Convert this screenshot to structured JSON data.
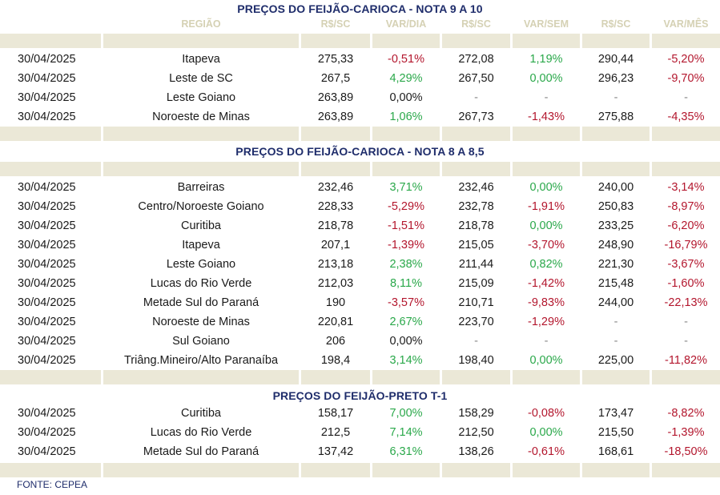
{
  "source": "FONTE: CEPEA",
  "headers": [
    "",
    "REGIÃO",
    "R$/SC",
    "VAR/DIA",
    "R$/SC",
    "VAR/SEM",
    "R$/SC",
    "VAR/MÊS"
  ],
  "colors": {
    "title": "#1f2d6b",
    "positive": "#2aa84a",
    "negative": "#b3162d",
    "band": "#ebe8d7"
  },
  "sections": [
    {
      "title": "PREÇOS DO FEIJÃO-CARIOCA - NOTA 9 A 10",
      "rows": [
        [
          "30/04/2025",
          "Itapeva",
          "275,33",
          "-0,51%",
          "272,08",
          "1,19%",
          "290,44",
          "-5,20%"
        ],
        [
          "30/04/2025",
          "Leste de SC",
          "267,5",
          "4,29%",
          "267,50",
          "0,00%",
          "296,23",
          "-9,70%"
        ],
        [
          "30/04/2025",
          "Leste Goiano",
          "263,89",
          "0,00%",
          "-",
          "-",
          "-",
          "-"
        ],
        [
          "30/04/2025",
          "Noroeste de Minas",
          "263,89",
          "1,06%",
          "267,73",
          "-1,43%",
          "275,88",
          "-4,35%"
        ]
      ]
    },
    {
      "title": "PREÇOS DO FEIJÃO-CARIOCA - NOTA 8 A 8,5",
      "rows": [
        [
          "30/04/2025",
          "Barreiras",
          "232,46",
          "3,71%",
          "232,46",
          "0,00%",
          "240,00",
          "-3,14%"
        ],
        [
          "30/04/2025",
          "Centro/Noroeste Goiano",
          "228,33",
          "-5,29%",
          "232,78",
          "-1,91%",
          "250,83",
          "-8,97%"
        ],
        [
          "30/04/2025",
          "Curitiba",
          "218,78",
          "-1,51%",
          "218,78",
          "0,00%",
          "233,25",
          "-6,20%"
        ],
        [
          "30/04/2025",
          "Itapeva",
          "207,1",
          "-1,39%",
          "215,05",
          "-3,70%",
          "248,90",
          "-16,79%"
        ],
        [
          "30/04/2025",
          "Leste Goiano",
          "213,18",
          "2,38%",
          "211,44",
          "0,82%",
          "221,30",
          "-3,67%"
        ],
        [
          "30/04/2025",
          "Lucas do Rio Verde",
          "212,03",
          "8,11%",
          "215,09",
          "-1,42%",
          "215,48",
          "-1,60%"
        ],
        [
          "30/04/2025",
          "Metade Sul do Paraná",
          "190",
          "-3,57%",
          "210,71",
          "-9,83%",
          "244,00",
          "-22,13%"
        ],
        [
          "30/04/2025",
          "Noroeste de Minas",
          "220,81",
          "2,67%",
          "223,70",
          "-1,29%",
          "-",
          "-"
        ],
        [
          "30/04/2025",
          "Sul Goiano",
          "206",
          "0,00%",
          "-",
          "-",
          "-",
          "-"
        ],
        [
          "30/04/2025",
          "Triâng.Mineiro/Alto Paranaíba",
          "198,4",
          "3,14%",
          "198,40",
          "0,00%",
          "225,00",
          "-11,82%"
        ]
      ]
    },
    {
      "title": "PREÇOS DO  FEIJÃO-PRETO  T-1",
      "rows": [
        [
          "30/04/2025",
          "Curitiba",
          "158,17",
          "7,00%",
          "158,29",
          "-0,08%",
          "173,47",
          "-8,82%"
        ],
        [
          "30/04/2025",
          "Lucas do Rio Verde",
          "212,5",
          "7,14%",
          "212,50",
          "0,00%",
          "215,50",
          "-1,39%"
        ],
        [
          "30/04/2025",
          "Metade Sul do Paraná",
          "137,42",
          "6,31%",
          "138,26",
          "-0,61%",
          "168,61",
          "-18,50%"
        ]
      ]
    }
  ]
}
